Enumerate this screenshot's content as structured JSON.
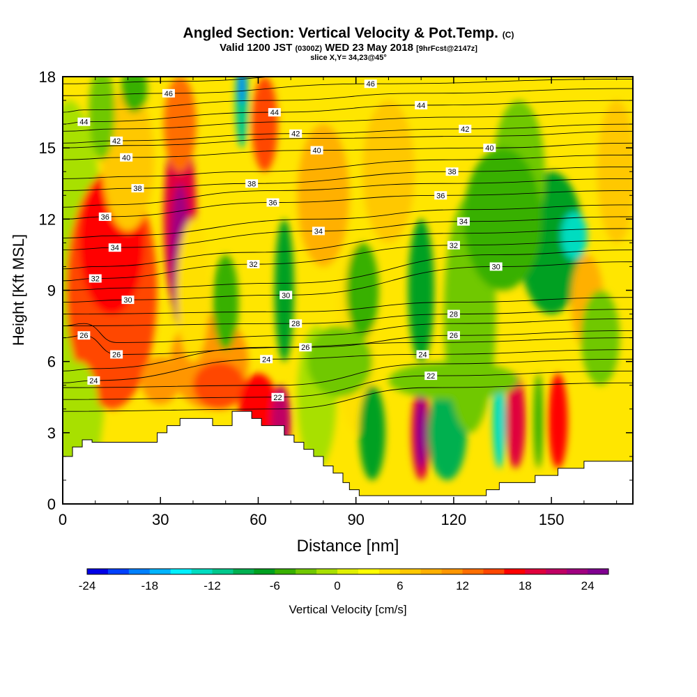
{
  "title": {
    "main": "Angled Section: Vertical Velocity & Pot.Temp.",
    "unit_tag": "(C)",
    "valid_prefix": "Valid 1200 JST",
    "valid_utc": "(0300Z)",
    "valid_date": "WED 23 May 2018",
    "forecast": "[9hrFcst@2147z]",
    "slice": "slice X,Y= 34,23@45°"
  },
  "chart_data": {
    "type": "heatmap",
    "xlabel": "Distance [nm]",
    "ylabel": "Height [Kft MSL]",
    "xlim": [
      0,
      175
    ],
    "ylim": [
      0,
      18
    ],
    "x_ticks": [
      0,
      30,
      60,
      90,
      120,
      150
    ],
    "y_ticks": [
      0,
      3,
      6,
      9,
      12,
      15,
      18
    ],
    "colorbar": {
      "label": "Vertical Velocity [cm/s]",
      "range": [
        -24,
        26
      ],
      "step": 2,
      "tick_values": [
        -24,
        -18,
        -12,
        -6,
        0,
        6,
        12,
        18,
        24
      ],
      "tick_labels": [
        "-24",
        "-18",
        "-12",
        "-6",
        "0",
        "6",
        "12",
        "18",
        "24"
      ],
      "colors": [
        "#0000e6",
        "#0040ff",
        "#0080ff",
        "#00b4ff",
        "#00f0ff",
        "#00dcc0",
        "#00c88c",
        "#00b050",
        "#00a020",
        "#38b000",
        "#70c800",
        "#a8e000",
        "#e0f000",
        "#ffff00",
        "#ffe000",
        "#ffc800",
        "#ffb000",
        "#ff9600",
        "#ff6e00",
        "#ff4600",
        "#ff0000",
        "#e0003c",
        "#c00064",
        "#a00080",
        "#800090"
      ]
    },
    "theta_contour_labels": [
      {
        "label": "46",
        "x": 32.5,
        "y": 17.3
      },
      {
        "label": "46",
        "x": 94.5,
        "y": 17.7
      },
      {
        "label": "44",
        "x": 6.5,
        "y": 16.1
      },
      {
        "label": "44",
        "x": 65,
        "y": 16.5
      },
      {
        "label": "44",
        "x": 110,
        "y": 16.8
      },
      {
        "label": "42",
        "x": 16.5,
        "y": 15.3
      },
      {
        "label": "42",
        "x": 71.5,
        "y": 15.6
      },
      {
        "label": "42",
        "x": 123.5,
        "y": 15.8
      },
      {
        "label": "40",
        "x": 19.5,
        "y": 14.6
      },
      {
        "label": "40",
        "x": 78,
        "y": 14.9
      },
      {
        "label": "40",
        "x": 131,
        "y": 15.0
      },
      {
        "label": "38",
        "x": 23,
        "y": 13.3
      },
      {
        "label": "38",
        "x": 58,
        "y": 13.5
      },
      {
        "label": "38",
        "x": 119.5,
        "y": 14.0
      },
      {
        "label": "36",
        "x": 13,
        "y": 12.1
      },
      {
        "label": "36",
        "x": 64.5,
        "y": 12.7
      },
      {
        "label": "36",
        "x": 116,
        "y": 13.0
      },
      {
        "label": "34",
        "x": 16,
        "y": 10.8
      },
      {
        "label": "34",
        "x": 78.5,
        "y": 11.5
      },
      {
        "label": "34",
        "x": 123,
        "y": 11.9
      },
      {
        "label": "32",
        "x": 10,
        "y": 9.5
      },
      {
        "label": "32",
        "x": 58.5,
        "y": 10.1
      },
      {
        "label": "32",
        "x": 120,
        "y": 10.9
      },
      {
        "label": "30",
        "x": 20,
        "y": 8.6
      },
      {
        "label": "30",
        "x": 68.5,
        "y": 8.8
      },
      {
        "label": "30",
        "x": 133,
        "y": 10.0
      },
      {
        "label": "28",
        "x": 71.5,
        "y": 7.6
      },
      {
        "label": "28",
        "x": 120,
        "y": 8.0
      },
      {
        "label": "26",
        "x": 6.5,
        "y": 7.1
      },
      {
        "label": "26",
        "x": 16.5,
        "y": 6.3
      },
      {
        "label": "26",
        "x": 74.5,
        "y": 6.6
      },
      {
        "label": "26",
        "x": 120,
        "y": 7.1
      },
      {
        "label": "24",
        "x": 9.5,
        "y": 5.2
      },
      {
        "label": "24",
        "x": 62.5,
        "y": 6.1
      },
      {
        "label": "24",
        "x": 110.5,
        "y": 6.3
      },
      {
        "label": "22",
        "x": 66,
        "y": 4.5
      },
      {
        "label": "22",
        "x": 113,
        "y": 5.4
      }
    ],
    "terrain_kft": [
      [
        0,
        2.0
      ],
      [
        3,
        2.0
      ],
      [
        3,
        2.4
      ],
      [
        6,
        2.4
      ],
      [
        6,
        2.7
      ],
      [
        9,
        2.7
      ],
      [
        9,
        2.6
      ],
      [
        29,
        2.6
      ],
      [
        29,
        3.0
      ],
      [
        32,
        3.0
      ],
      [
        32,
        3.3
      ],
      [
        36,
        3.3
      ],
      [
        36,
        3.6
      ],
      [
        46,
        3.6
      ],
      [
        46,
        3.3
      ],
      [
        52,
        3.3
      ],
      [
        52,
        3.9
      ],
      [
        58,
        3.9
      ],
      [
        58,
        3.6
      ],
      [
        61,
        3.6
      ],
      [
        61,
        3.3
      ],
      [
        68,
        3.3
      ],
      [
        68,
        2.9
      ],
      [
        71,
        2.9
      ],
      [
        71,
        2.6
      ],
      [
        74,
        2.6
      ],
      [
        74,
        2.3
      ],
      [
        77,
        2.3
      ],
      [
        77,
        2.0
      ],
      [
        80,
        2.0
      ],
      [
        80,
        1.6
      ],
      [
        83,
        1.6
      ],
      [
        83,
        1.3
      ],
      [
        86,
        1.3
      ],
      [
        86,
        0.9
      ],
      [
        88,
        0.9
      ],
      [
        88,
        0.6
      ],
      [
        91,
        0.6
      ],
      [
        91,
        0.35
      ],
      [
        130,
        0.35
      ],
      [
        130,
        0.6
      ],
      [
        134,
        0.6
      ],
      [
        134,
        0.9
      ],
      [
        145,
        0.9
      ],
      [
        145,
        1.2
      ],
      [
        152,
        1.2
      ],
      [
        152,
        1.5
      ],
      [
        160,
        1.5
      ],
      [
        160,
        1.8
      ],
      [
        175,
        1.8
      ]
    ]
  }
}
